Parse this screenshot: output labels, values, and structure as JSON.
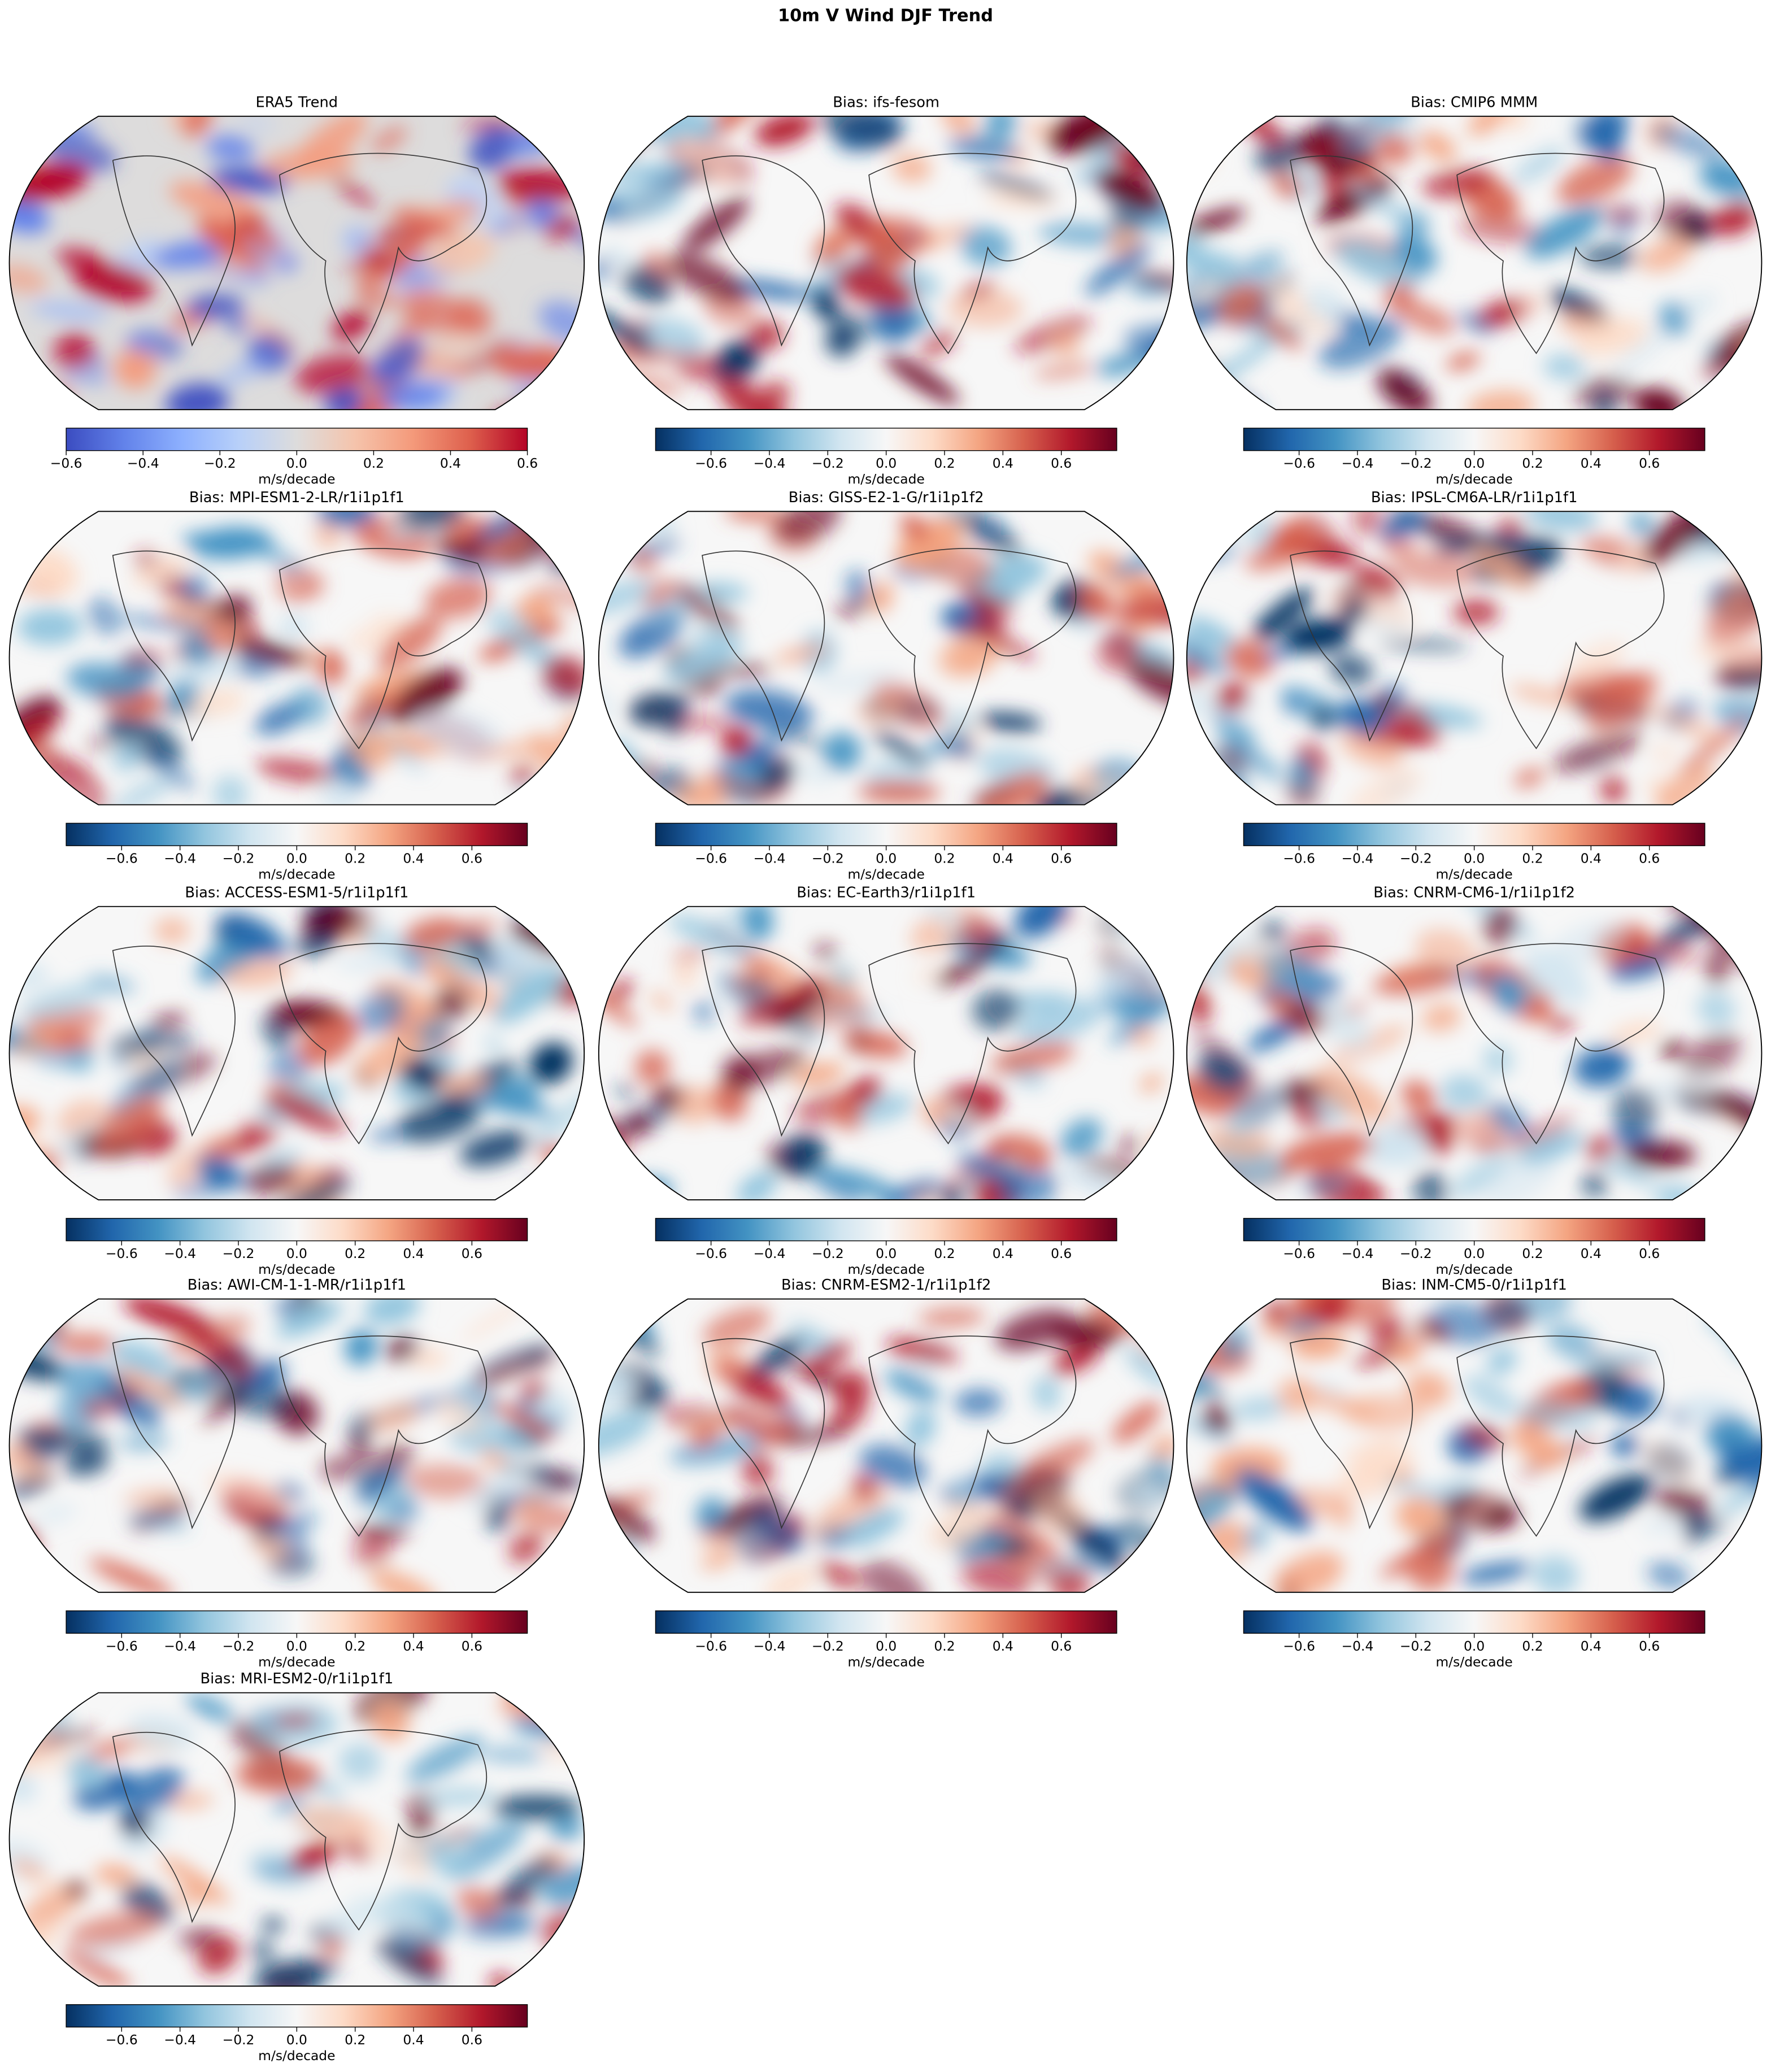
{
  "title": "10m V Wind DJF Trend",
  "chart_data": [
    {
      "type": "map",
      "title": "ERA5 Trend",
      "colorbar_label": "m/s/decade",
      "clim": [
        -0.6,
        0.6
      ],
      "cticks": [
        {
          "value": -0.6,
          "label": "−0.6"
        },
        {
          "value": -0.4,
          "label": "−0.4"
        },
        {
          "value": -0.2,
          "label": "−0.2"
        },
        {
          "value": 0,
          "label": "0.0"
        },
        0.2,
        0.4,
        0.6
      ],
      "cmap": [
        "#3b4cc0",
        "#6282ea",
        "#8db0fe",
        "#b8d0f9",
        "#dddcdc",
        "#f5c4ac",
        "#f49a7b",
        "#de604d",
        "#b40426"
      ]
    },
    {
      "type": "map",
      "title": "Bias: ifs-fesom",
      "colorbar_label": "m/s/decade",
      "clim": [
        -0.79,
        0.79
      ],
      "cticks": [
        {
          "value": -0.6,
          "label": "−0.6"
        },
        {
          "value": -0.4,
          "label": "−0.4"
        },
        {
          "value": -0.2,
          "label": "−0.2"
        },
        {
          "value": 0,
          "label": "0.0"
        },
        0.2,
        0.4,
        0.6
      ],
      "cmap": [
        "#053061",
        "#2166ac",
        "#4393c3",
        "#92c5de",
        "#d1e5f0",
        "#f7f7f7",
        "#fddbc7",
        "#f4a582",
        "#d6604d",
        "#b2182b",
        "#67001f"
      ]
    },
    {
      "type": "map",
      "title": "Bias: CMIP6 MMM",
      "colorbar_label": "m/s/decade",
      "clim": [
        -0.79,
        0.79
      ],
      "cticks": [
        {
          "value": -0.6,
          "label": "−0.6"
        },
        {
          "value": -0.4,
          "label": "−0.4"
        },
        {
          "value": -0.2,
          "label": "−0.2"
        },
        {
          "value": 0,
          "label": "0.0"
        },
        0.2,
        0.4,
        0.6
      ],
      "cmap": [
        "#053061",
        "#2166ac",
        "#4393c3",
        "#92c5de",
        "#d1e5f0",
        "#f7f7f7",
        "#fddbc7",
        "#f4a582",
        "#d6604d",
        "#b2182b",
        "#67001f"
      ]
    },
    {
      "type": "map",
      "title": "Bias: MPI-ESM1-2-LR/r1i1p1f1",
      "colorbar_label": "m/s/decade",
      "clim": [
        -0.79,
        0.79
      ],
      "cticks": [
        {
          "value": -0.6,
          "label": "−0.6"
        },
        {
          "value": -0.4,
          "label": "−0.4"
        },
        {
          "value": -0.2,
          "label": "−0.2"
        },
        {
          "value": 0,
          "label": "0.0"
        },
        0.2,
        0.4,
        0.6
      ],
      "cmap": [
        "#053061",
        "#2166ac",
        "#4393c3",
        "#92c5de",
        "#d1e5f0",
        "#f7f7f7",
        "#fddbc7",
        "#f4a582",
        "#d6604d",
        "#b2182b",
        "#67001f"
      ]
    },
    {
      "type": "map",
      "title": "Bias: GISS-E2-1-G/r1i1p1f2",
      "colorbar_label": "m/s/decade",
      "clim": [
        -0.79,
        0.79
      ],
      "cticks": [
        {
          "value": -0.6,
          "label": "−0.6"
        },
        {
          "value": -0.4,
          "label": "−0.4"
        },
        {
          "value": -0.2,
          "label": "−0.2"
        },
        {
          "value": 0,
          "label": "0.0"
        },
        0.2,
        0.4,
        0.6
      ],
      "cmap": [
        "#053061",
        "#2166ac",
        "#4393c3",
        "#92c5de",
        "#d1e5f0",
        "#f7f7f7",
        "#fddbc7",
        "#f4a582",
        "#d6604d",
        "#b2182b",
        "#67001f"
      ]
    },
    {
      "type": "map",
      "title": "Bias: IPSL-CM6A-LR/r1i1p1f1",
      "colorbar_label": "m/s/decade",
      "clim": [
        -0.79,
        0.79
      ],
      "cticks": [
        {
          "value": -0.6,
          "label": "−0.6"
        },
        {
          "value": -0.4,
          "label": "−0.4"
        },
        {
          "value": -0.2,
          "label": "−0.2"
        },
        {
          "value": 0,
          "label": "0.0"
        },
        0.2,
        0.4,
        0.6
      ],
      "cmap": [
        "#053061",
        "#2166ac",
        "#4393c3",
        "#92c5de",
        "#d1e5f0",
        "#f7f7f7",
        "#fddbc7",
        "#f4a582",
        "#d6604d",
        "#b2182b",
        "#67001f"
      ]
    },
    {
      "type": "map",
      "title": "Bias: ACCESS-ESM1-5/r1i1p1f1",
      "colorbar_label": "m/s/decade",
      "clim": [
        -0.79,
        0.79
      ],
      "cticks": [
        {
          "value": -0.6,
          "label": "−0.6"
        },
        {
          "value": -0.4,
          "label": "−0.4"
        },
        {
          "value": -0.2,
          "label": "−0.2"
        },
        {
          "value": 0,
          "label": "0.0"
        },
        0.2,
        0.4,
        0.6
      ],
      "cmap": [
        "#053061",
        "#2166ac",
        "#4393c3",
        "#92c5de",
        "#d1e5f0",
        "#f7f7f7",
        "#fddbc7",
        "#f4a582",
        "#d6604d",
        "#b2182b",
        "#67001f"
      ]
    },
    {
      "type": "map",
      "title": "Bias: EC-Earth3/r1i1p1f1",
      "colorbar_label": "m/s/decade",
      "clim": [
        -0.79,
        0.79
      ],
      "cticks": [
        {
          "value": -0.6,
          "label": "−0.6"
        },
        {
          "value": -0.4,
          "label": "−0.4"
        },
        {
          "value": -0.2,
          "label": "−0.2"
        },
        {
          "value": 0,
          "label": "0.0"
        },
        0.2,
        0.4,
        0.6
      ],
      "cmap": [
        "#053061",
        "#2166ac",
        "#4393c3",
        "#92c5de",
        "#d1e5f0",
        "#f7f7f7",
        "#fddbc7",
        "#f4a582",
        "#d6604d",
        "#b2182b",
        "#67001f"
      ]
    },
    {
      "type": "map",
      "title": "Bias: CNRM-CM6-1/r1i1p1f2",
      "colorbar_label": "m/s/decade",
      "clim": [
        -0.79,
        0.79
      ],
      "cticks": [
        {
          "value": -0.6,
          "label": "−0.6"
        },
        {
          "value": -0.4,
          "label": "−0.4"
        },
        {
          "value": -0.2,
          "label": "−0.2"
        },
        {
          "value": 0,
          "label": "0.0"
        },
        0.2,
        0.4,
        0.6
      ],
      "cmap": [
        "#053061",
        "#2166ac",
        "#4393c3",
        "#92c5de",
        "#d1e5f0",
        "#f7f7f7",
        "#fddbc7",
        "#f4a582",
        "#d6604d",
        "#b2182b",
        "#67001f"
      ]
    },
    {
      "type": "map",
      "title": "Bias: AWI-CM-1-1-MR/r1i1p1f1",
      "colorbar_label": "m/s/decade",
      "clim": [
        -0.79,
        0.79
      ],
      "cticks": [
        {
          "value": -0.6,
          "label": "−0.6"
        },
        {
          "value": -0.4,
          "label": "−0.4"
        },
        {
          "value": -0.2,
          "label": "−0.2"
        },
        {
          "value": 0,
          "label": "0.0"
        },
        0.2,
        0.4,
        0.6
      ],
      "cmap": [
        "#053061",
        "#2166ac",
        "#4393c3",
        "#92c5de",
        "#d1e5f0",
        "#f7f7f7",
        "#fddbc7",
        "#f4a582",
        "#d6604d",
        "#b2182b",
        "#67001f"
      ]
    },
    {
      "type": "map",
      "title": "Bias: CNRM-ESM2-1/r1i1p1f2",
      "colorbar_label": "m/s/decade",
      "clim": [
        -0.79,
        0.79
      ],
      "cticks": [
        {
          "value": -0.6,
          "label": "−0.6"
        },
        {
          "value": -0.4,
          "label": "−0.4"
        },
        {
          "value": -0.2,
          "label": "−0.2"
        },
        {
          "value": 0,
          "label": "0.0"
        },
        0.2,
        0.4,
        0.6
      ],
      "cmap": [
        "#053061",
        "#2166ac",
        "#4393c3",
        "#92c5de",
        "#d1e5f0",
        "#f7f7f7",
        "#fddbc7",
        "#f4a582",
        "#d6604d",
        "#b2182b",
        "#67001f"
      ]
    },
    {
      "type": "map",
      "title": "Bias: INM-CM5-0/r1i1p1f1",
      "colorbar_label": "m/s/decade",
      "clim": [
        -0.79,
        0.79
      ],
      "cticks": [
        {
          "value": -0.6,
          "label": "−0.6"
        },
        {
          "value": -0.4,
          "label": "−0.4"
        },
        {
          "value": -0.2,
          "label": "−0.2"
        },
        {
          "value": 0,
          "label": "0.0"
        },
        0.2,
        0.4,
        0.6
      ],
      "cmap": [
        "#053061",
        "#2166ac",
        "#4393c3",
        "#92c5de",
        "#d1e5f0",
        "#f7f7f7",
        "#fddbc7",
        "#f4a582",
        "#d6604d",
        "#b2182b",
        "#67001f"
      ]
    },
    {
      "type": "map",
      "title": "Bias: MRI-ESM2-0/r1i1p1f1",
      "colorbar_label": "m/s/decade",
      "clim": [
        -0.79,
        0.79
      ],
      "cticks": [
        {
          "value": -0.6,
          "label": "−0.6"
        },
        {
          "value": -0.4,
          "label": "−0.4"
        },
        {
          "value": -0.2,
          "label": "−0.2"
        },
        {
          "value": 0,
          "label": "0.0"
        },
        0.2,
        0.4,
        0.6
      ],
      "cmap": [
        "#053061",
        "#2166ac",
        "#4393c3",
        "#92c5de",
        "#d1e5f0",
        "#f7f7f7",
        "#fddbc7",
        "#f4a582",
        "#d6604d",
        "#b2182b",
        "#67001f"
      ]
    }
  ]
}
